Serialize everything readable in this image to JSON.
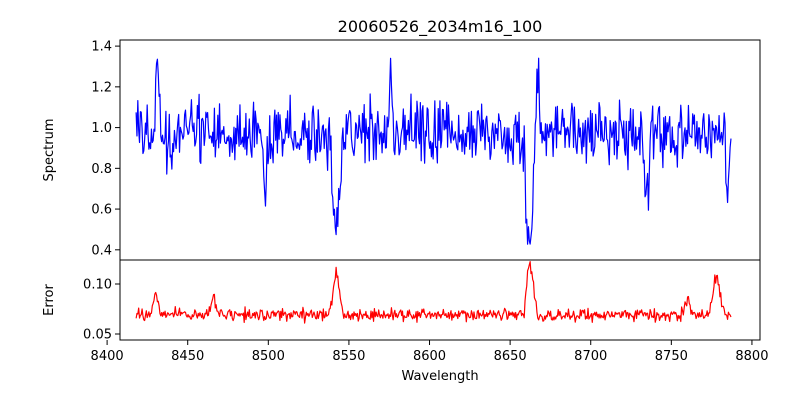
{
  "chart_data": {
    "title": "20060526_2034m16_100",
    "xlabel": "Wavelength",
    "xlim": [
      8408,
      8805
    ],
    "x_ticks": [
      8400,
      8450,
      8500,
      8550,
      8600,
      8650,
      8700,
      8750,
      8800
    ],
    "x_tick_labels": [
      "8400",
      "8450",
      "8500",
      "8550",
      "8600",
      "8650",
      "8700",
      "8750",
      "8800"
    ],
    "grid": false,
    "panels": [
      {
        "type": "line",
        "ylabel": "Spectrum",
        "ylim": [
          0.35,
          1.43
        ],
        "y_ticks": [
          0.4,
          0.6,
          0.8,
          1.0,
          1.2,
          1.4
        ],
        "y_tick_labels": [
          "0.4",
          "0.6",
          "0.8",
          "1.0",
          "1.2",
          "1.4"
        ],
        "color": "#0000ff",
        "x_range": [
          8418,
          8787
        ],
        "baseline": 0.97,
        "noise": 0.11,
        "features": [
          {
            "center": 8498.0,
            "depth": 0.22,
            "width": 1.8
          },
          {
            "center": 8542.1,
            "depth": 0.52,
            "width": 2.0
          },
          {
            "center": 8662.1,
            "depth": 0.5,
            "width": 2.0
          },
          {
            "center": 8576.0,
            "depth": -0.36,
            "width": 0.9
          },
          {
            "center": 8431.0,
            "depth": -0.3,
            "width": 0.9
          },
          {
            "center": 8667.0,
            "depth": -0.33,
            "width": 0.9
          },
          {
            "center": 8735.0,
            "depth": 0.3,
            "width": 1.0
          },
          {
            "center": 8785.0,
            "depth": 0.28,
            "width": 1.0
          }
        ]
      },
      {
        "type": "line",
        "ylabel": "Error",
        "ylim": [
          0.044,
          0.124
        ],
        "y_ticks": [
          0.05,
          0.1
        ],
        "y_tick_labels": [
          "0.05",
          "0.10"
        ],
        "color": "#ff0000",
        "x_range": [
          8418,
          8787
        ],
        "baseline": 0.069,
        "noise": 0.0045,
        "features": [
          {
            "center": 8542.1,
            "depth": -0.04,
            "width": 2.0
          },
          {
            "center": 8662.1,
            "depth": -0.052,
            "width": 2.2
          },
          {
            "center": 8778.0,
            "depth": -0.04,
            "width": 2.0
          },
          {
            "center": 8466.0,
            "depth": -0.018,
            "width": 1.5
          },
          {
            "center": 8430.0,
            "depth": -0.022,
            "width": 1.2
          },
          {
            "center": 8760.0,
            "depth": -0.016,
            "width": 1.5
          },
          {
            "center": 8658.8,
            "depth": 0.02,
            "width": 0.6
          }
        ]
      }
    ]
  }
}
